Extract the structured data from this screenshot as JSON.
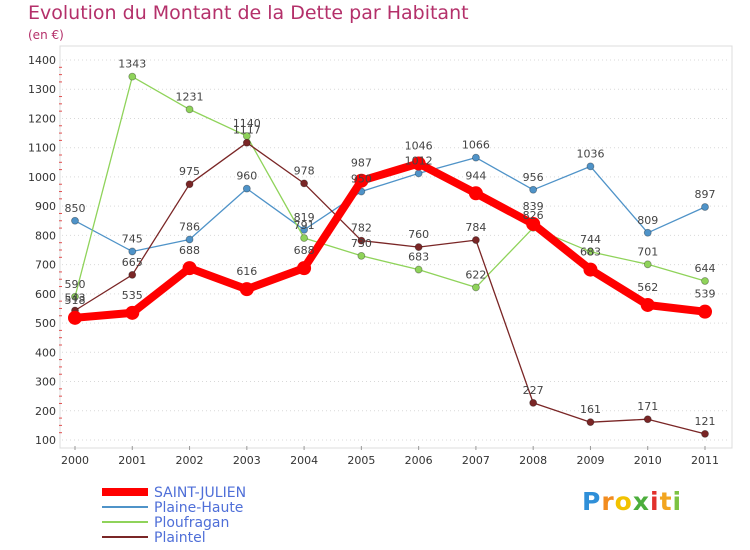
{
  "chart_data": {
    "type": "line",
    "title": "Evolution du Montant de la Dette par Habitant",
    "unit_label": "(en €)",
    "xlabel": "",
    "ylabel": "",
    "categories": [
      "2000",
      "2001",
      "2002",
      "2003",
      "2004",
      "2005",
      "2006",
      "2007",
      "2008",
      "2009",
      "2010",
      "2011"
    ],
    "ylim": [
      100,
      1400
    ],
    "yticks": [
      100,
      200,
      300,
      400,
      500,
      600,
      700,
      800,
      900,
      1000,
      1100,
      1200,
      1300,
      1400
    ],
    "grid": "horizontal dotted",
    "legend_placement": "bottom-left",
    "series": [
      {
        "name": "SAINT-JULIEN",
        "color": "#ff0000",
        "emphasis": true,
        "values": [
          518,
          535,
          688,
          616,
          688,
          987,
          1046,
          944,
          839,
          683,
          562,
          539
        ],
        "labels": [
          "518",
          "535",
          "688",
          "616",
          "688",
          "987",
          "1046",
          "944",
          "839",
          "683",
          "562",
          "539"
        ]
      },
      {
        "name": "Plaine-Haute",
        "color": "#4f93c8",
        "emphasis": false,
        "values": [
          850,
          745,
          786,
          960,
          819,
          950,
          1012,
          1066,
          956,
          1036,
          809,
          897
        ],
        "labels": [
          "850",
          "745",
          "786",
          "960",
          "819",
          "950",
          "1012",
          "1066",
          "956",
          "1036",
          "809",
          "897"
        ]
      },
      {
        "name": "Ploufragan",
        "color": "#8fd35a",
        "emphasis": false,
        "values": [
          590,
          1343,
          1231,
          1140,
          791,
          730,
          683,
          622,
          826,
          744,
          701,
          644
        ],
        "labels": [
          "590",
          "1343",
          "1231",
          "1140",
          "791",
          "730",
          "683",
          "622",
          "826",
          "744",
          "701",
          "644"
        ]
      },
      {
        "name": "Plaintel",
        "color": "#7a2626",
        "emphasis": false,
        "values": [
          543,
          665,
          975,
          1117,
          978,
          782,
          760,
          784,
          227,
          161,
          171,
          121
        ],
        "labels": [
          "543",
          "665",
          "975",
          "1117",
          "978",
          "782",
          "760",
          "784",
          "227",
          "161",
          "171",
          "121"
        ]
      }
    ]
  },
  "logo": {
    "letters": [
      "P",
      "r",
      "o",
      "x",
      "i",
      "t",
      "i"
    ],
    "colors": [
      "#2f8fd8",
      "#f28c1f",
      "#f2c200",
      "#4cae3c",
      "#e2312c",
      "#f2a51f",
      "#7cc242"
    ]
  }
}
